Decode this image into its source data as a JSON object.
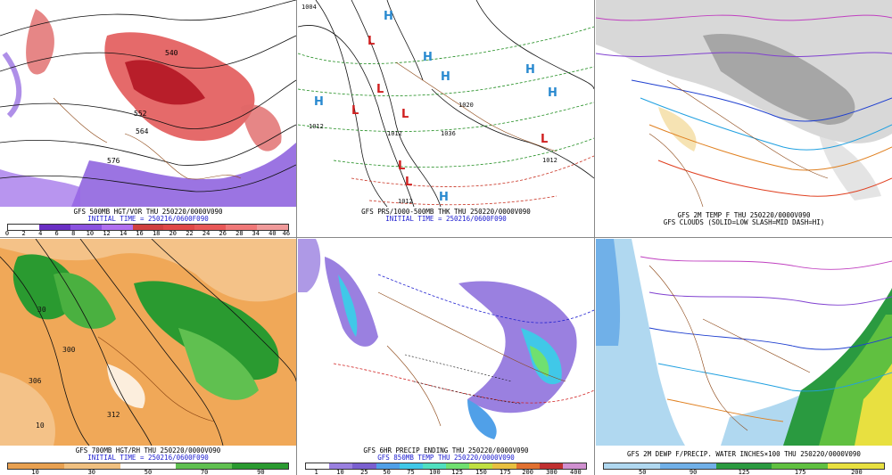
{
  "panels": [
    {
      "caption1": "GFS 500MB HGT/VOR THU 250220/0000V090",
      "caption2": "INITIAL TIME = 250216/0600F090",
      "scale": [
        "0",
        "2",
        "4",
        "6",
        "8",
        "10",
        "12",
        "14",
        "16",
        "18",
        "20",
        "22",
        "24",
        "26",
        "28",
        "34",
        "40",
        "46"
      ],
      "contours": [
        "540",
        "552",
        "564",
        "576"
      ],
      "colors": [
        "#ffffff",
        "#6a2fc4",
        "#8a52e0",
        "#b070f0",
        "#d04040",
        "#e04848",
        "#e85858",
        "#f07878",
        "#f09a9a"
      ]
    },
    {
      "caption1": "GFS PRS/1000-500MB THK THU 250220/0000V090",
      "caption2": "INITIAL TIME = 250216/0600F090",
      "highs": [
        "H",
        "H",
        "H",
        "H",
        "H",
        "H",
        "H"
      ],
      "lows": [
        "L",
        "L",
        "L",
        "L",
        "L",
        "L",
        "L"
      ],
      "isobars": [
        "1004",
        "1012",
        "1012",
        "1036",
        "1012",
        "1012",
        "1020"
      ]
    },
    {
      "caption1": "GFS 2M TEMP F THU 250220/0000V090",
      "caption2": "GFS CLOUDS (SOLID=LOW SLASH=MID DASH=HI)"
    },
    {
      "caption1": "GFS 700MB HGT/RH THU 250220/0000V090",
      "caption2": "INITIAL TIME = 250216/0600F090",
      "scale": [
        "10",
        "30",
        "50",
        "70",
        "90"
      ],
      "contours": [
        "300",
        "306",
        "312",
        "30",
        "10"
      ],
      "colors": [
        "#e8a050",
        "#f0c080",
        "#ffffff",
        "#60c050",
        "#2a9a30"
      ]
    },
    {
      "caption1": "GFS 6HR PRECIP ENDING THU 250220/0000V090",
      "caption2": "GFS 850MB TEMP THU 250220/0000V090",
      "scale": [
        "1",
        "10",
        "25",
        "50",
        "75",
        "100",
        "125",
        "150",
        "175",
        "200",
        "300",
        "400"
      ],
      "colors": [
        "#ffffff",
        "#9a80e0",
        "#7a60d0",
        "#50a0e8",
        "#40c8e8",
        "#50e0c0",
        "#70e070",
        "#c0e040",
        "#e8c040",
        "#e07030",
        "#c03030",
        "#d090d0"
      ]
    },
    {
      "caption1": "GFS 2M DEWP F/PRECIP. WATER INCHES×100 THU 250220/0000V090",
      "scale": [
        "50",
        "90",
        "125",
        "175",
        "200"
      ],
      "colors": [
        "#b0d8f0",
        "#70b0e8",
        "#2a9a40",
        "#60c040",
        "#e8e040"
      ]
    }
  ]
}
